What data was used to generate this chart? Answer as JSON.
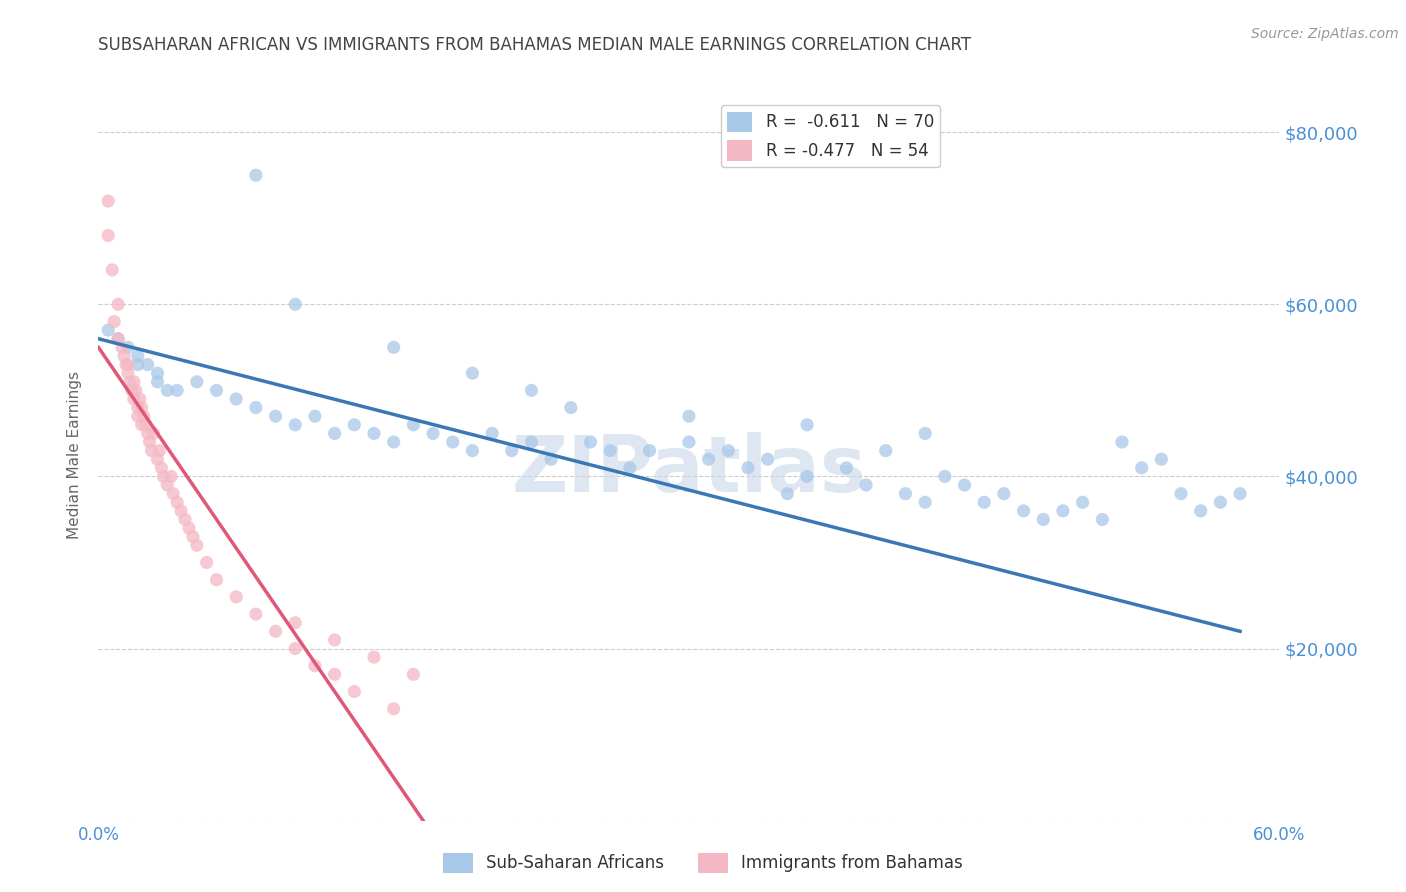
{
  "title": "SUBSAHARAN AFRICAN VS IMMIGRANTS FROM BAHAMAS MEDIAN MALE EARNINGS CORRELATION CHART",
  "source": "Source: ZipAtlas.com",
  "ylabel": "Median Male Earnings",
  "xlim": [
    0.0,
    0.6
  ],
  "ylim": [
    0,
    85000
  ],
  "yticks": [
    0,
    20000,
    40000,
    60000,
    80000
  ],
  "ytick_labels": [
    "",
    "$20,000",
    "$40,000",
    "$60,000",
    "$80,000"
  ],
  "xticks": [
    0.0,
    0.1,
    0.2,
    0.3,
    0.4,
    0.5,
    0.6
  ],
  "xtick_labels": [
    "0.0%",
    "",
    "",
    "",
    "",
    "",
    "60.0%"
  ],
  "legend_entries": [
    {
      "label": "R =  -0.611   N = 70",
      "color": "#a8c8e8"
    },
    {
      "label": "R = -0.477   N = 54",
      "color": "#f4a0b0"
    }
  ],
  "series1_label": "Sub-Saharan Africans",
  "series2_label": "Immigrants from Bahamas",
  "series1_color": "#a8c8e8",
  "series2_color": "#f4b8c4",
  "series1_line_color": "#3a78b5",
  "series2_line_color": "#e05878",
  "watermark": "ZIPatlas",
  "watermark_color": "#c8d8e8",
  "title_color": "#444444",
  "axis_label_color": "#666666",
  "tick_label_color": "#4a90d9",
  "grid_color": "#cccccc",
  "background_color": "#ffffff",
  "series1_x": [
    0.005,
    0.01,
    0.015,
    0.02,
    0.02,
    0.025,
    0.03,
    0.03,
    0.035,
    0.04,
    0.05,
    0.06,
    0.07,
    0.08,
    0.09,
    0.1,
    0.11,
    0.12,
    0.13,
    0.14,
    0.15,
    0.16,
    0.17,
    0.18,
    0.19,
    0.2,
    0.21,
    0.22,
    0.23,
    0.25,
    0.26,
    0.27,
    0.28,
    0.3,
    0.31,
    0.32,
    0.33,
    0.34,
    0.35,
    0.36,
    0.38,
    0.39,
    0.4,
    0.41,
    0.42,
    0.43,
    0.44,
    0.45,
    0.46,
    0.47,
    0.48,
    0.49,
    0.5,
    0.51,
    0.52,
    0.53,
    0.54,
    0.55,
    0.56,
    0.57,
    0.58,
    0.22,
    0.24,
    0.19,
    0.3,
    0.36,
    0.42,
    0.15,
    0.1,
    0.08
  ],
  "series1_y": [
    57000,
    56000,
    55000,
    54000,
    53000,
    53000,
    52000,
    51000,
    50000,
    50000,
    51000,
    50000,
    49000,
    48000,
    47000,
    46000,
    47000,
    45000,
    46000,
    45000,
    44000,
    46000,
    45000,
    44000,
    43000,
    45000,
    43000,
    44000,
    42000,
    44000,
    43000,
    41000,
    43000,
    44000,
    42000,
    43000,
    41000,
    42000,
    38000,
    40000,
    41000,
    39000,
    43000,
    38000,
    37000,
    40000,
    39000,
    37000,
    38000,
    36000,
    35000,
    36000,
    37000,
    35000,
    44000,
    41000,
    42000,
    38000,
    36000,
    37000,
    38000,
    50000,
    48000,
    52000,
    47000,
    46000,
    45000,
    55000,
    60000,
    75000
  ],
  "series2_x": [
    0.005,
    0.005,
    0.007,
    0.008,
    0.01,
    0.01,
    0.012,
    0.013,
    0.014,
    0.015,
    0.015,
    0.016,
    0.017,
    0.018,
    0.018,
    0.019,
    0.02,
    0.02,
    0.021,
    0.022,
    0.022,
    0.023,
    0.024,
    0.025,
    0.026,
    0.027,
    0.028,
    0.03,
    0.031,
    0.032,
    0.033,
    0.035,
    0.037,
    0.038,
    0.04,
    0.042,
    0.044,
    0.046,
    0.048,
    0.05,
    0.055,
    0.06,
    0.07,
    0.08,
    0.09,
    0.1,
    0.11,
    0.12,
    0.13,
    0.15,
    0.1,
    0.12,
    0.14,
    0.16
  ],
  "series2_y": [
    72000,
    68000,
    64000,
    58000,
    60000,
    56000,
    55000,
    54000,
    53000,
    52000,
    53000,
    51000,
    50000,
    51000,
    49000,
    50000,
    48000,
    47000,
    49000,
    48000,
    46000,
    47000,
    46000,
    45000,
    44000,
    43000,
    45000,
    42000,
    43000,
    41000,
    40000,
    39000,
    40000,
    38000,
    37000,
    36000,
    35000,
    34000,
    33000,
    32000,
    30000,
    28000,
    26000,
    24000,
    22000,
    20000,
    18000,
    17000,
    15000,
    13000,
    23000,
    21000,
    19000,
    17000
  ],
  "s1_trendline_x0": 0.0,
  "s1_trendline_y0": 56000,
  "s1_trendline_x1": 0.58,
  "s1_trendline_y1": 22000,
  "s2_trendline_x0": 0.0,
  "s2_trendline_y0": 55000,
  "s2_trendline_x1": 0.165,
  "s2_trendline_y1": 0
}
